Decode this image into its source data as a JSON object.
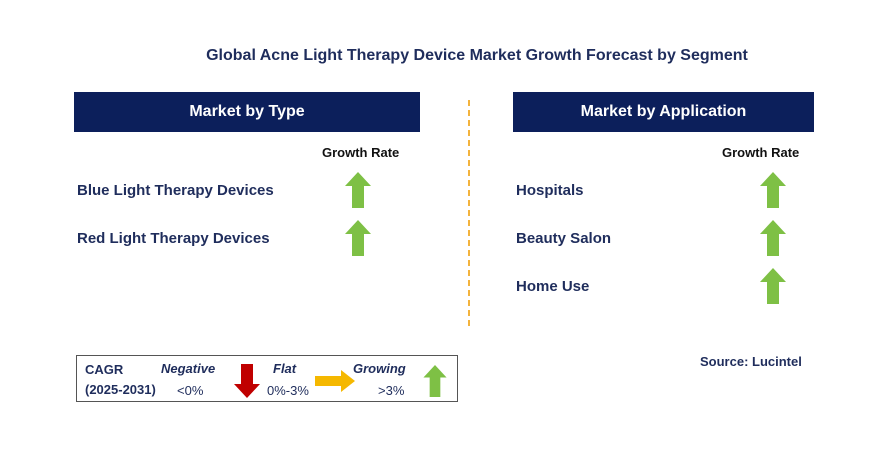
{
  "title": "Global Acne Light Therapy Device Market Growth Forecast by Segment",
  "left_panel": {
    "header": "Market by Type",
    "growth_label": "Growth Rate",
    "items": [
      {
        "label": "Blue Light Therapy Devices",
        "trend": "growing"
      },
      {
        "label": "Red Light Therapy Devices",
        "trend": "growing"
      }
    ]
  },
  "right_panel": {
    "header": "Market by Application",
    "growth_label": "Growth Rate",
    "items": [
      {
        "label": "Hospitals",
        "trend": "growing"
      },
      {
        "label": "Beauty Salon",
        "trend": "growing"
      },
      {
        "label": "Home Use",
        "trend": "growing"
      }
    ]
  },
  "legend": {
    "cagr_label": "CAGR",
    "period": "(2025-2031)",
    "negative_label": "Negative",
    "negative_range": "<0%",
    "flat_label": "Flat",
    "flat_range": "0%-3%",
    "growing_label": "Growing",
    "growing_range": ">3%"
  },
  "source": "Source: Lucintel",
  "colors": {
    "header_bg": "#0c1f5b",
    "growing": "#7ec045",
    "negative": "#c00000",
    "flat": "#f5b800",
    "divider": "#f3b33d"
  }
}
